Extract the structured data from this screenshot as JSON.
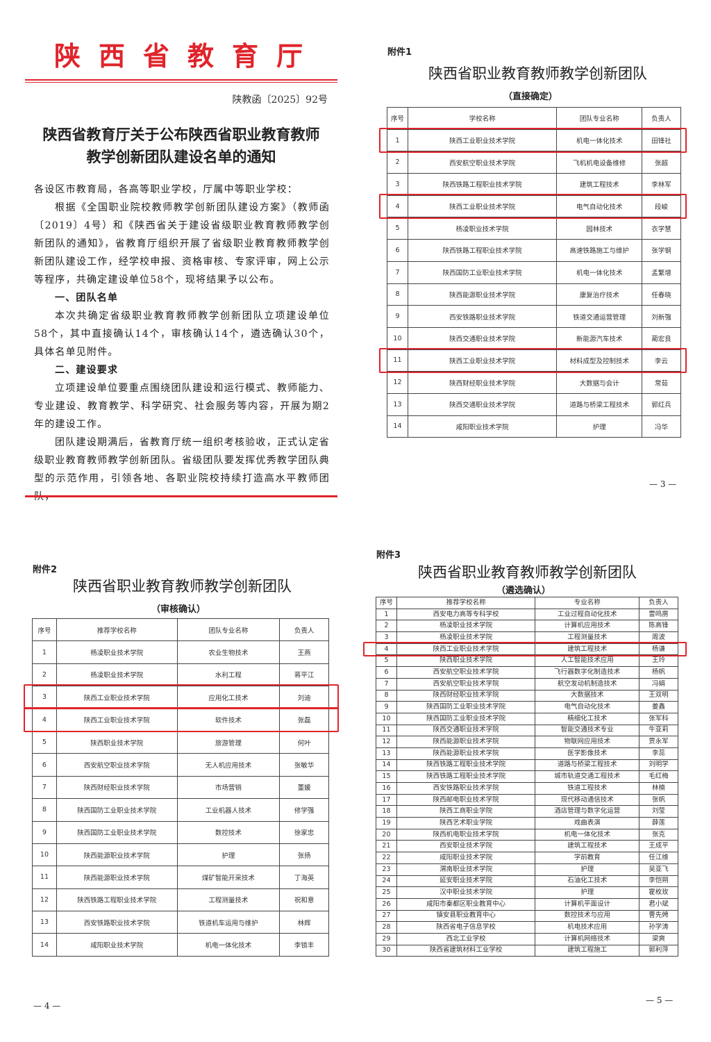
{
  "notice_page": {
    "org_header": "陕西省教育厅",
    "doc_number": "陕教函〔2025〕92号",
    "title_line1": "陕西省教育厅关于公布陕西省职业教育教师",
    "title_line2": "教学创新团队建设名单的通知",
    "paragraphs": [
      {
        "type": "salutation",
        "text": "各设区市教育局，各高等职业学校，厅属中等职业学校："
      },
      {
        "type": "body",
        "text": "根据《全国职业院校教师教学创新团队建设方案》（教师函〔2019〕4号）和《陕西省关于建设省级职业教育教师教学创新团队的通知》，省教育厅组织开展了省级职业教育教师教学创新团队建设工作，经学校申报、资格审核、专家评审，网上公示等程序，共确定建设单位58个，现将结果予以公布。"
      },
      {
        "type": "heading",
        "text": "一、团队名单"
      },
      {
        "type": "body",
        "text": "本次共确定省级职业教育教师教学创新团队立项建设单位58个，其中直接确认14个，审核确认14个，遴选确认30个，具体名单见附件。"
      },
      {
        "type": "heading",
        "text": "二、建设要求"
      },
      {
        "type": "body",
        "text": "立项建设单位要重点围绕团队建设和运行模式、教师能力、专业建设、教育教学、科学研究、社会服务等内容，开展为期2年的建设工作。"
      },
      {
        "type": "body",
        "text": "团队建设期满后，省教育厅统一组织考核验收，正式认定省级职业教育教师教学创新团队。省级团队要发挥优秀教学团队典型的示范作用，引领各地、各职业院校持续打造高水平教师团队，"
      }
    ]
  },
  "attachment1": {
    "label": "附件1",
    "title": "陕西省职业教育教师教学创新团队",
    "subtitle": "（直接确定）",
    "headers": [
      "序号",
      "学校名称",
      "团队专业名称",
      "负责人"
    ],
    "highlighted_rows": [
      1,
      4,
      11
    ],
    "rows": [
      [
        "1",
        "陕西工业职业技术学院",
        "机电一体化技术",
        "田锋社"
      ],
      [
        "2",
        "西安航空职业技术学院",
        "飞机机电设备维修",
        "张超"
      ],
      [
        "3",
        "陕西铁路工程职业技术学院",
        "建筑工程技术",
        "李林军"
      ],
      [
        "4",
        "陕西工业职业技术学院",
        "电气自动化技术",
        "段峻"
      ],
      [
        "5",
        "杨凌职业技术学院",
        "园林技术",
        "衣学慧"
      ],
      [
        "6",
        "陕西铁路工程职业技术学院",
        "高速铁路施工与维护",
        "张学钢"
      ],
      [
        "7",
        "陕西国防工业职业技术学院",
        "机电一体化技术",
        "孟繁增"
      ],
      [
        "8",
        "陕西能源职业技术学院",
        "康复治疗技术",
        "任春晓"
      ],
      [
        "9",
        "西安铁路职业技术学院",
        "铁道交通运营管理",
        "刘新强"
      ],
      [
        "10",
        "陕西交通职业技术学院",
        "新能源汽车技术",
        "蔺宏良"
      ],
      [
        "11",
        "陕西工业职业技术学院",
        "材料成型及控制技术",
        "李云"
      ],
      [
        "12",
        "陕西财经职业技术学院",
        "大数据与会计",
        "常茹"
      ],
      [
        "13",
        "陕西交通职业技术学院",
        "道路与桥梁工程技术",
        "郭红兵"
      ],
      [
        "14",
        "咸阳职业技术学院",
        "护理",
        "冯华"
      ]
    ],
    "page_number": "— 3 —"
  },
  "attachment2": {
    "label": "附件2",
    "title": "陕西省职业教育教师教学创新团队",
    "subtitle": "（审核确认）",
    "headers": [
      "序号",
      "推荐学校名称",
      "团队专业名称",
      "负责人"
    ],
    "highlighted_rows": [
      3,
      4
    ],
    "rows": [
      [
        "1",
        "杨凌职业技术学院",
        "农业生物技术",
        "王燕"
      ],
      [
        "2",
        "杨凌职业技术学院",
        "水利工程",
        "蒋平江"
      ],
      [
        "3",
        "陕西工业职业技术学院",
        "应用化工技术",
        "刘迪"
      ],
      [
        "4",
        "陕西工业职业技术学院",
        "软件技术",
        "张磊"
      ],
      [
        "5",
        "陕西职业技术学院",
        "旅游管理",
        "何叶"
      ],
      [
        "6",
        "西安航空职业技术学院",
        "无人机应用技术",
        "张敏华"
      ],
      [
        "7",
        "陕西财经职业技术学院",
        "市场营销",
        "董媛"
      ],
      [
        "8",
        "陕西国防工业职业技术学院",
        "工业机器人技术",
        "修学强"
      ],
      [
        "9",
        "陕西国防工业职业技术学院",
        "数控技术",
        "徐家忠"
      ],
      [
        "10",
        "陕西能源职业技术学院",
        "护理",
        "张扬"
      ],
      [
        "11",
        "陕西能源职业技术学院",
        "煤矿智能开采技术",
        "丁海英"
      ],
      [
        "12",
        "陕西铁路工程职业技术学院",
        "工程测量技术",
        "祝和意"
      ],
      [
        "13",
        "西安铁路职业技术学院",
        "铁道机车运用与维护",
        "林辉"
      ],
      [
        "14",
        "咸阳职业技术学院",
        "机电一体化技术",
        "李锁丰"
      ]
    ],
    "page_number": "— 4 —"
  },
  "attachment3": {
    "label": "附件3",
    "title": "陕西省职业教育教师教学创新团队",
    "subtitle": "（遴选确认）",
    "headers": [
      "序号",
      "推荐学校名称",
      "专业名称",
      "负责人"
    ],
    "highlighted_rows": [
      4
    ],
    "rows": [
      [
        "1",
        "西安电力高等专科学校",
        "工业过程自动化技术",
        "雷鸣雳"
      ],
      [
        "2",
        "杨凌职业技术学院",
        "计算机应用技术",
        "陈高锋"
      ],
      [
        "3",
        "杨凌职业技术学院",
        "工程测量技术",
        "周波"
      ],
      [
        "4",
        "陕西工业职业技术学院",
        "建筑工程技术",
        "杨谦"
      ],
      [
        "5",
        "陕西职业技术学院",
        "人工智能技术应用",
        "王玲"
      ],
      [
        "6",
        "西安航空职业技术学院",
        "飞行器数字化制造技术",
        "杨帆"
      ],
      [
        "7",
        "西安航空职业技术学院",
        "航空发动机制造技术",
        "冯娟"
      ],
      [
        "8",
        "陕西财经职业技术学院",
        "大数据技术",
        "王双明"
      ],
      [
        "9",
        "陕西国防工业职业技术学院",
        "电气自动化技术",
        "姜鑫"
      ],
      [
        "10",
        "陕西国防工业职业技术学院",
        "精细化工技术",
        "张军科"
      ],
      [
        "11",
        "陕西交通职业技术学院",
        "智能交通技术专业",
        "牛亚莉"
      ],
      [
        "12",
        "陕西能源职业技术学院",
        "物联网应用技术",
        "贾永军"
      ],
      [
        "13",
        "陕西能源职业技术学院",
        "医学影像技术",
        "李蕊"
      ],
      [
        "14",
        "陕西铁路工程职业技术学院",
        "道路与桥梁工程技术",
        "刘明学"
      ],
      [
        "15",
        "陕西铁路工程职业技术学院",
        "城市轨道交通工程技术",
        "毛红梅"
      ],
      [
        "16",
        "西安铁路职业技术学院",
        "铁道工程技术",
        "林楠"
      ],
      [
        "17",
        "陕西邮电职业技术学院",
        "现代移动通信技术",
        "张帆"
      ],
      [
        "18",
        "陕西工商职业学院",
        "酒店管理与数字化运营",
        "刘莹"
      ],
      [
        "19",
        "陕西艺术职业学院",
        "戏曲表演",
        "薛莲"
      ],
      [
        "20",
        "陕西机电职业技术学院",
        "机电一体化技术",
        "张克"
      ],
      [
        "21",
        "西安职业技术学院",
        "建筑工程技术",
        "王成平"
      ],
      [
        "22",
        "咸阳职业技术学院",
        "学前教育",
        "任江维"
      ],
      [
        "23",
        "渭南职业技术学院",
        "护理",
        "吴亚飞"
      ],
      [
        "24",
        "延安职业技术学院",
        "石油化工技术",
        "李恺朔"
      ],
      [
        "25",
        "汉中职业技术学院",
        "护理",
        "霍枚玫"
      ],
      [
        "26",
        "咸阳市秦都区职业教育中心",
        "计算机平面设计",
        "君小斌"
      ],
      [
        "27",
        "镇安县职业教育中心",
        "数控技术与应用",
        "曹先娉"
      ],
      [
        "28",
        "陕西省电子信息学校",
        "机电技术应用",
        "孙学涛"
      ],
      [
        "29",
        "西北工业学校",
        "计算机网络技术",
        "梁爽"
      ],
      [
        "30",
        "陕西省建筑材料工业学校",
        "建筑工程施工",
        "郭利萍"
      ]
    ],
    "page_number": "— 5 —"
  },
  "colors": {
    "red_accent": "#e0242b"
  }
}
